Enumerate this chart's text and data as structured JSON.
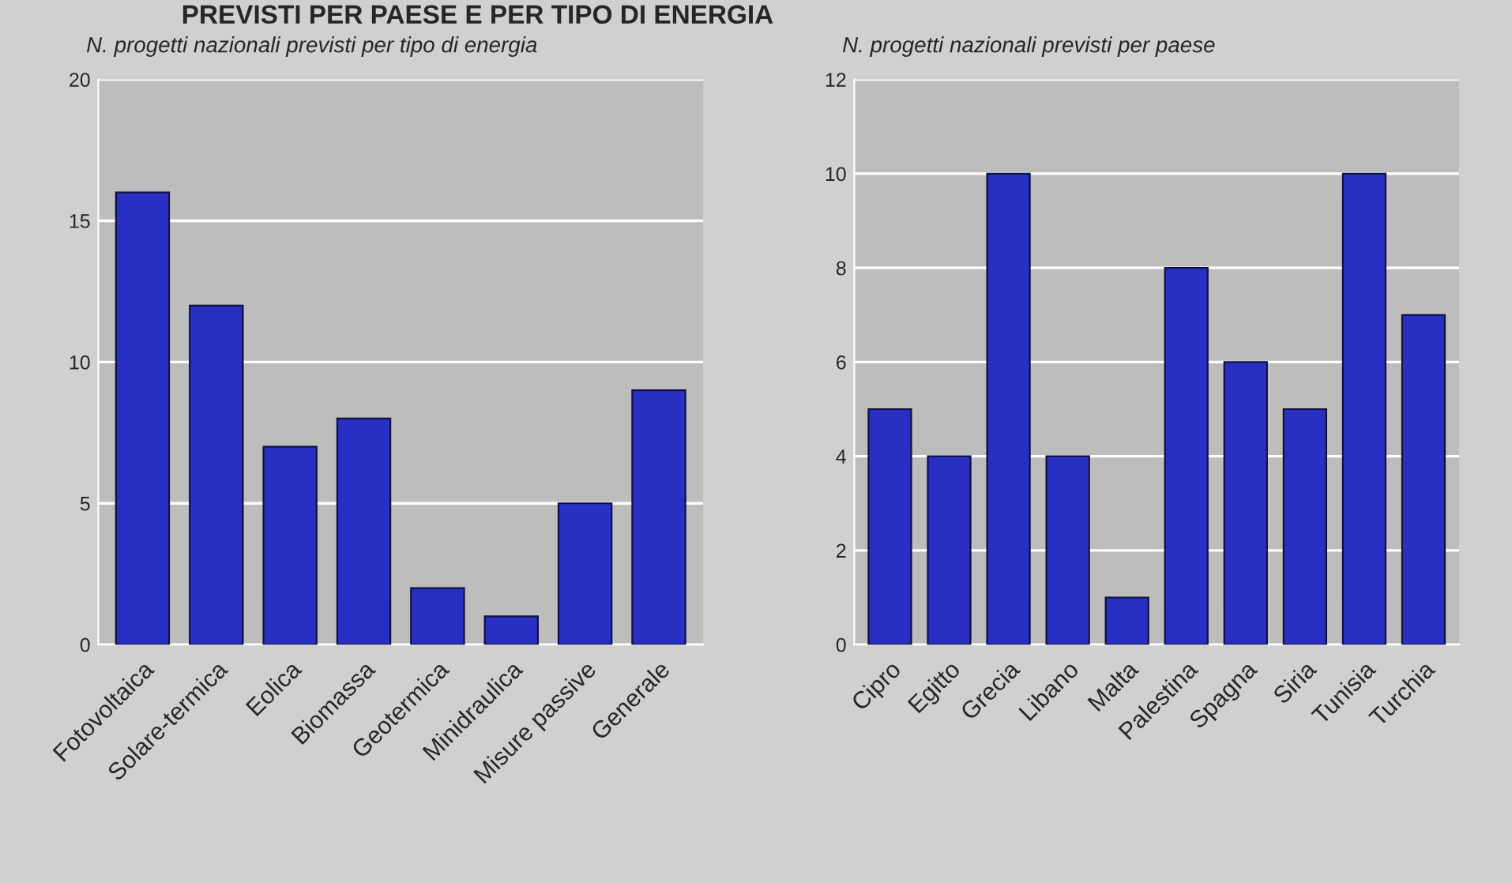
{
  "chart_data": [
    {
      "type": "bar",
      "title": "N. progetti nazionali previsti per tipo di energia",
      "annotations": [
        "PREVISTI PER PAESE E PER TIPO DI ENERGIA"
      ],
      "categories": [
        "Fotovoltaica",
        "Solare-termica",
        "Eolica",
        "Biomassa",
        "Geotermica",
        "Minidraulica",
        "Misure passive",
        "Generale"
      ],
      "values": [
        16,
        12,
        7,
        8,
        2,
        1,
        5,
        9
      ],
      "color": "#2a2fc4",
      "ylim": [
        0,
        20
      ],
      "yticks": [
        0,
        5,
        10,
        15,
        20
      ],
      "grid": "y"
    },
    {
      "type": "bar",
      "title": "N. progetti nazionali previsti per paese",
      "categories": [
        "Cipro",
        "Egitto",
        "Grecia",
        "Libano",
        "Malta",
        "Palestina",
        "Spagna",
        "Siria",
        "Tunisia",
        "Turchia"
      ],
      "values": [
        5,
        4,
        10,
        4,
        1,
        8,
        6,
        5,
        10,
        7
      ],
      "color": "#2a2fc4",
      "ylim": [
        0,
        12
      ],
      "yticks": [
        0,
        2,
        4,
        6,
        8,
        10,
        12
      ],
      "grid": "y"
    }
  ]
}
